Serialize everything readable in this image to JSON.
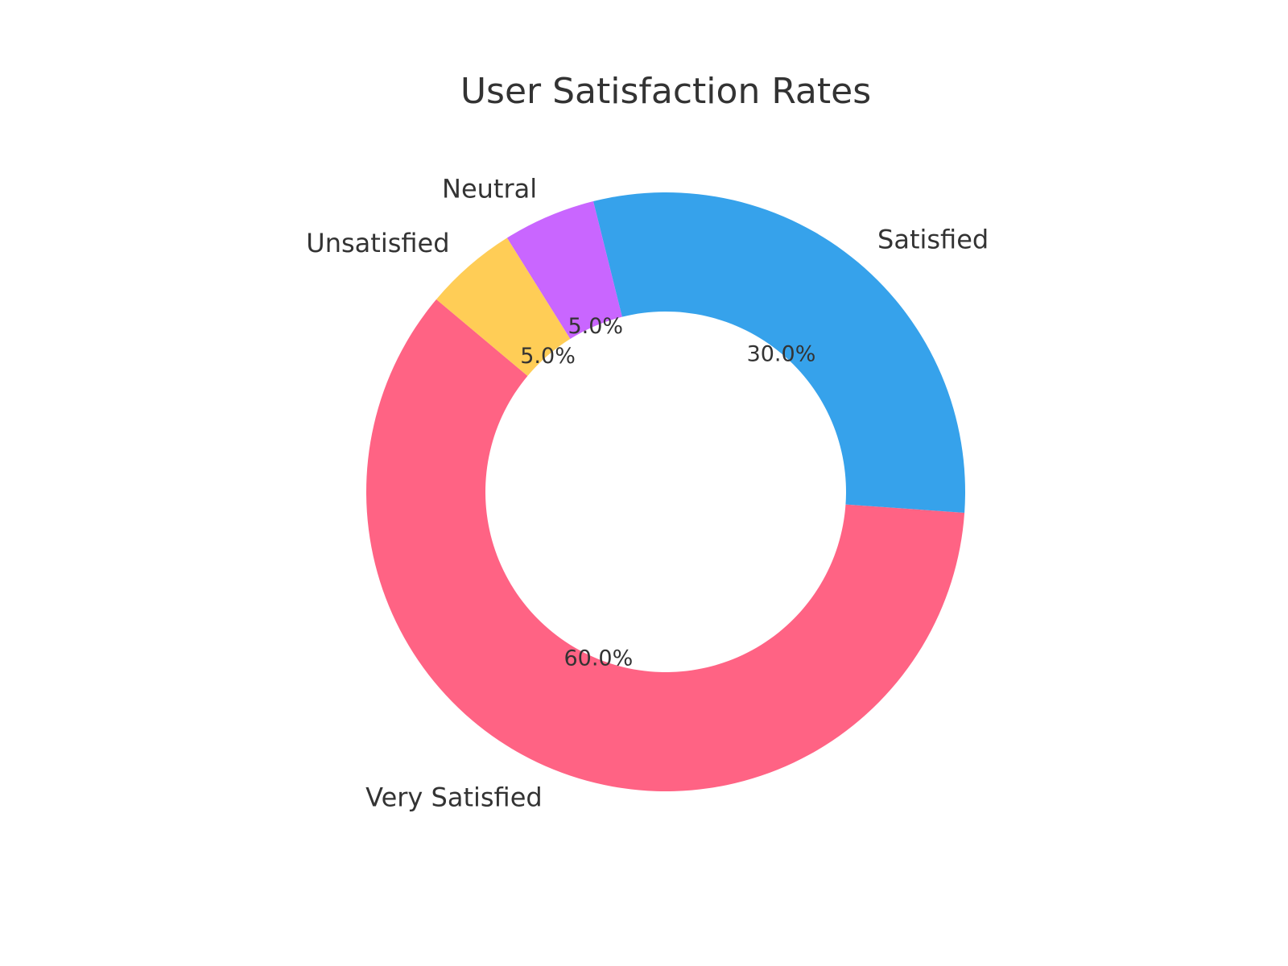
{
  "chart_data": {
    "type": "pie",
    "title": "User Satisfaction Rates",
    "categories": [
      "Very Satisfied",
      "Satisfied",
      "Neutral",
      "Unsatisfied"
    ],
    "values": [
      60,
      30,
      5,
      5
    ],
    "value_labels": [
      "60.0%",
      "30.0%",
      "5.0%",
      "5.0%"
    ],
    "colors": [
      "#ff6384",
      "#36a2eb",
      "#c966ff",
      "#ffcd56"
    ],
    "donut": true,
    "start_angle_deg": 140,
    "direction": "counterclockwise",
    "legend": "none"
  }
}
